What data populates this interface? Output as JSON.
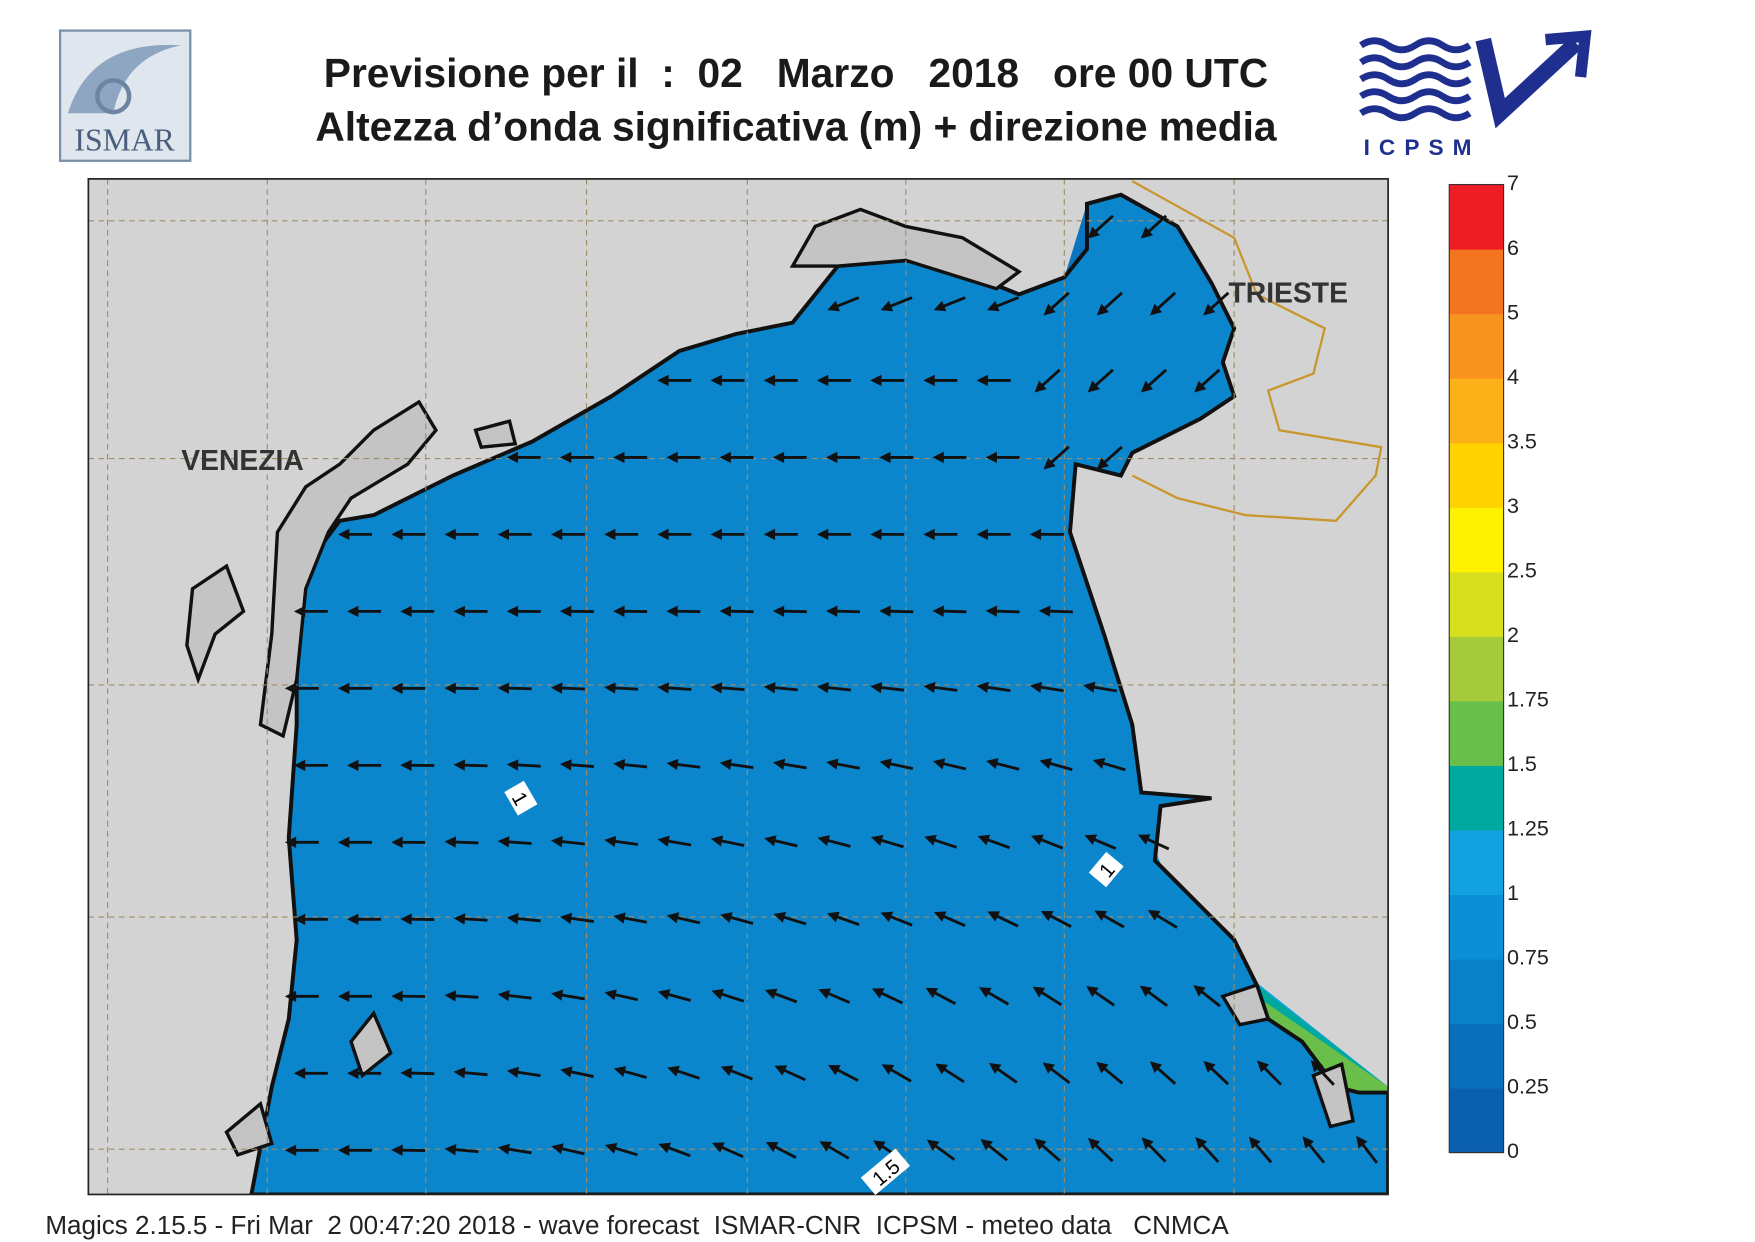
{
  "header": {
    "title_line1": "Previsione per il  :  02   Marzo   2018   ore 00 UTC",
    "title_line2": "Altezza d’onda significativa (m) + direzione media"
  },
  "logos": {
    "left": "ISMAR",
    "right": "ICPSM"
  },
  "map": {
    "cities": [
      "VENEZIA",
      "TRIESTE"
    ],
    "contour_labels": [
      "1",
      "1",
      "1.5"
    ]
  },
  "colorbar": {
    "ticks": [
      0,
      0.25,
      0.5,
      0.75,
      1,
      1.25,
      1.5,
      1.75,
      2,
      2.5,
      3,
      3.5,
      4,
      5,
      6,
      7
    ],
    "colors": [
      "#0a5fae",
      "#0a6fbb",
      "#0a80c8",
      "#0b90d6",
      "#12a2e0",
      "#00a99d",
      "#6abf4b",
      "#a6cb3a",
      "#d6e01f",
      "#fff200",
      "#ffd200",
      "#fbb117",
      "#f7941d",
      "#f47520",
      "#ee1c25",
      "#ec145e"
    ]
  },
  "footer": "Magics 2.15.5 - Fri Mar  2 00:47:20 2018 - wave forecast  ISMAR-CNR  ICPSM - meteo data   CNMCA"
}
